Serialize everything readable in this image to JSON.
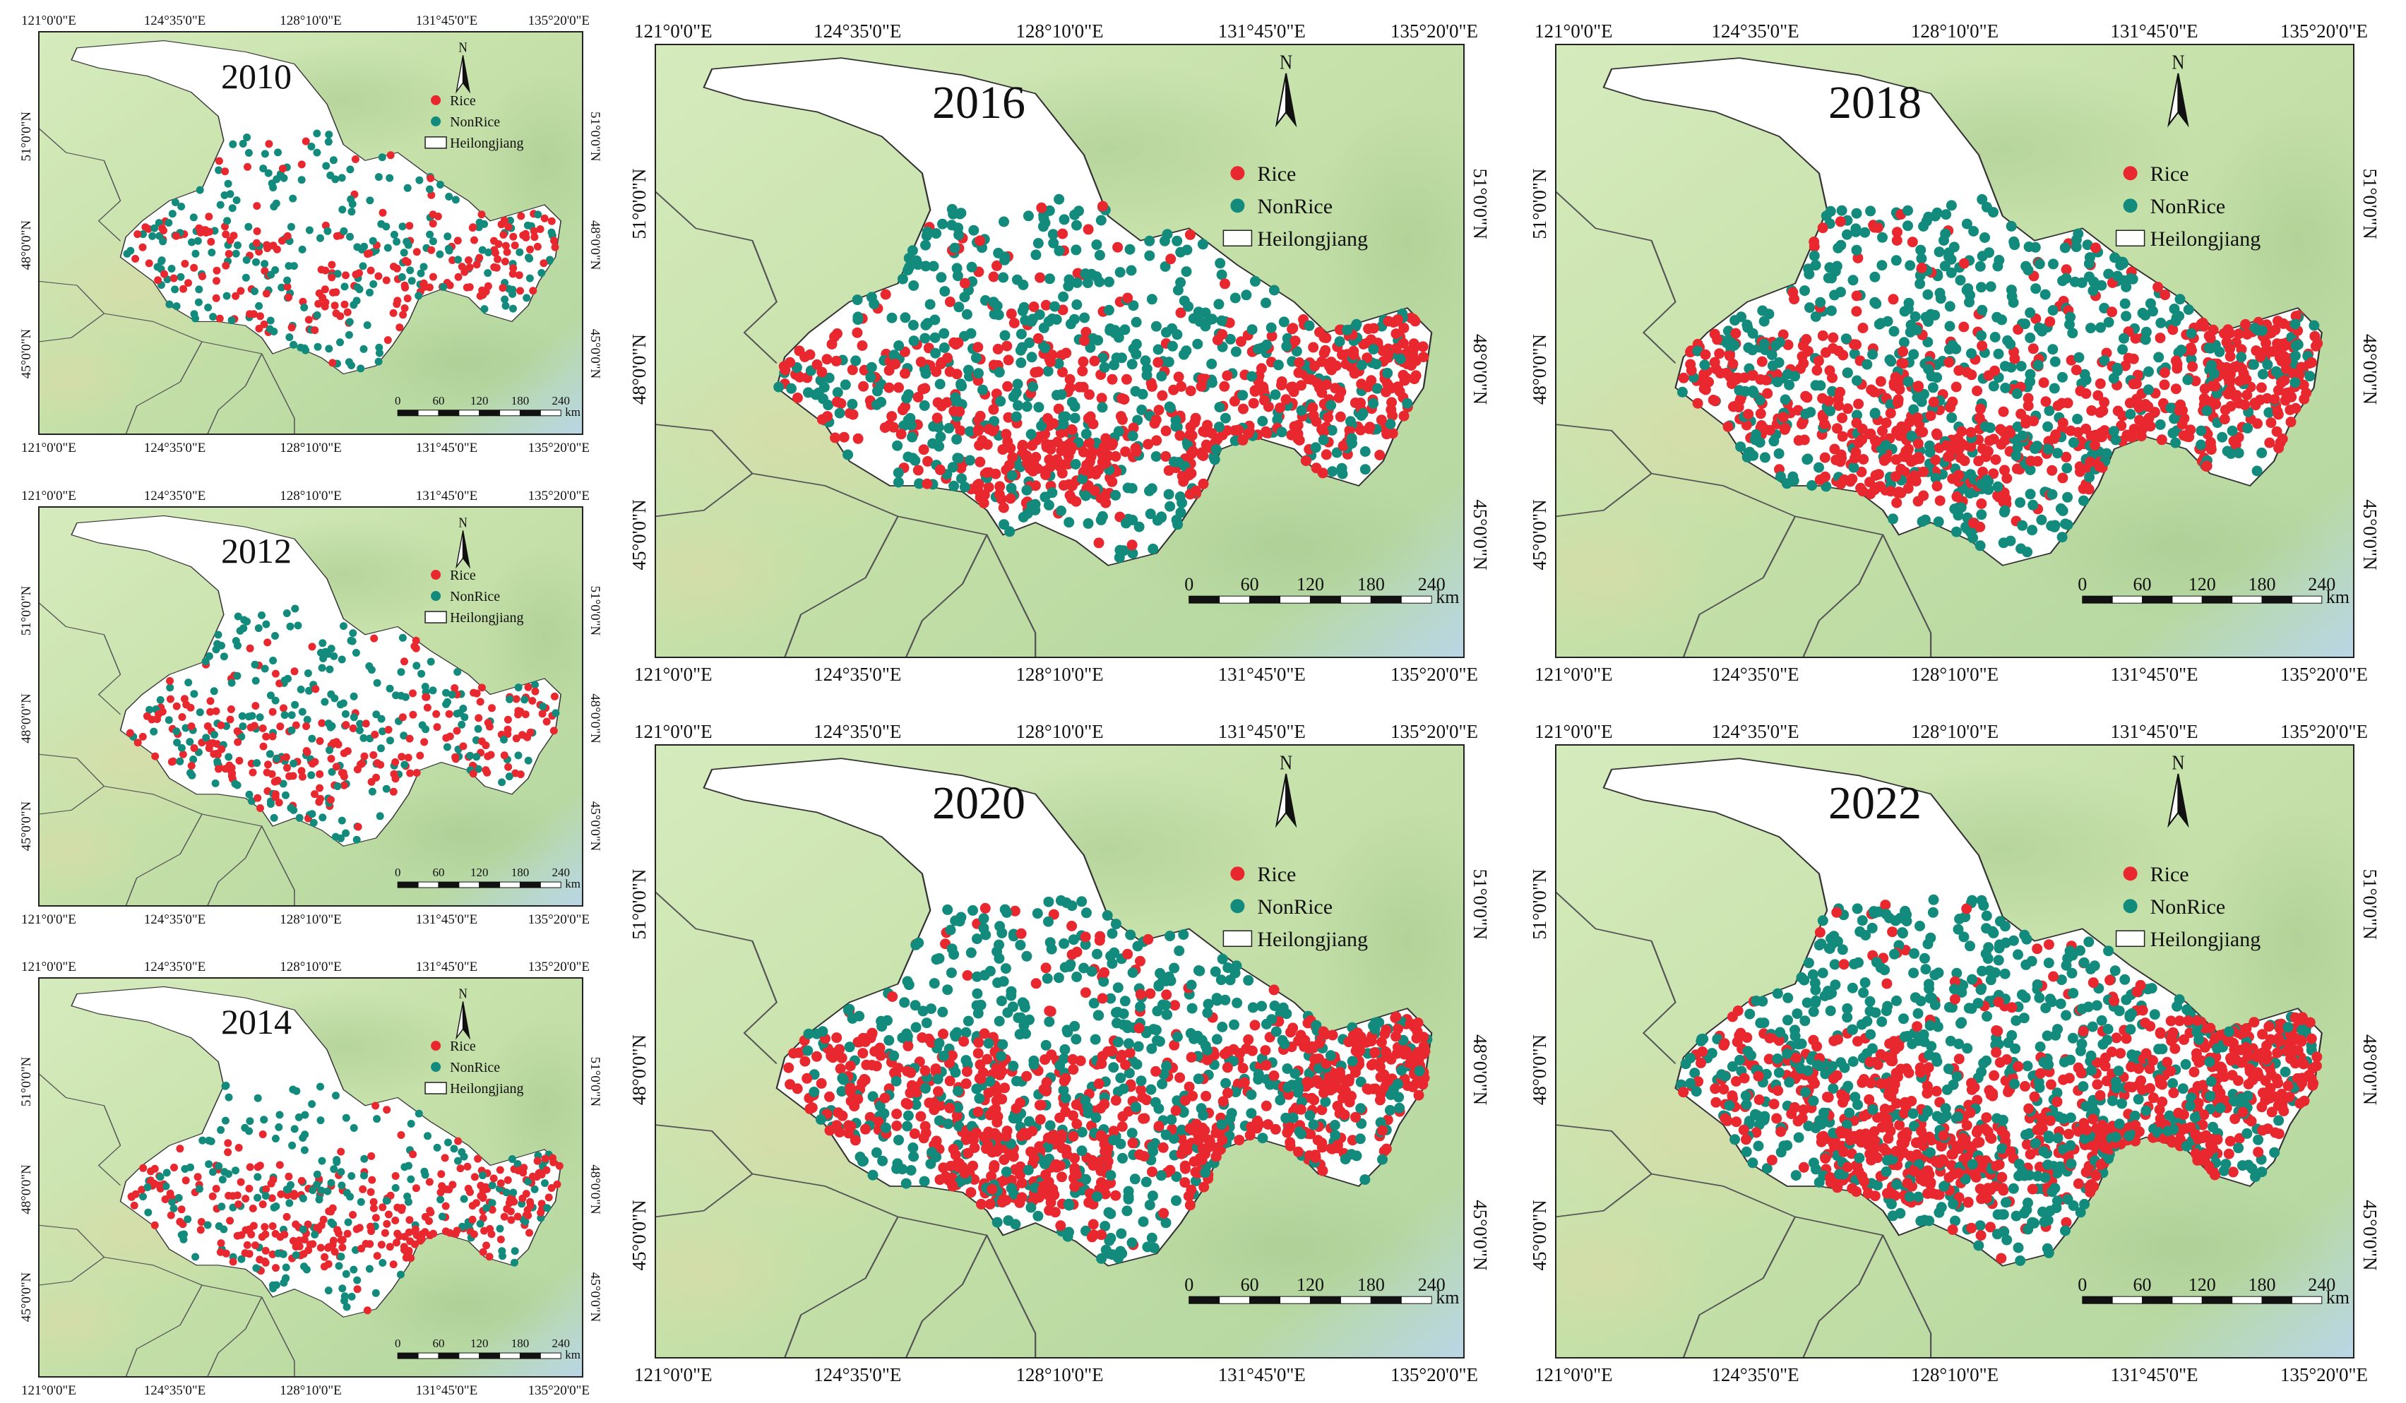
{
  "figure": {
    "lon_ticks": [
      "121°0'0\"E",
      "124°35'0\"E",
      "128°10'0\"E",
      "131°45'0\"E",
      "135°20'0\"E"
    ],
    "lat_ticks": [
      "45°0'0\"N",
      "48°0'0\"N",
      "51°0'0\"N"
    ],
    "legend": {
      "rice": "Rice",
      "nonrice": "NonRice",
      "region": "Heilongjiang"
    },
    "north_label": "N",
    "scale_labels": [
      "0",
      "60",
      "120",
      "180",
      "240"
    ],
    "scale_unit": "km",
    "colors": {
      "rice": "#e8282e",
      "nonrice": "#128a7c",
      "background": "#c9e3b0",
      "province": "#ffffff"
    }
  },
  "panels": [
    {
      "year": "2010",
      "rice": 380,
      "nonrice": 420
    },
    {
      "year": "2012",
      "rice": 420,
      "nonrice": 400
    },
    {
      "year": "2014",
      "rice": 560,
      "nonrice": 360
    },
    {
      "year": "2016",
      "rice": 620,
      "nonrice": 520
    },
    {
      "year": "2018",
      "rice": 700,
      "nonrice": 560
    },
    {
      "year": "2020",
      "rice": 760,
      "nonrice": 600
    },
    {
      "year": "2022",
      "rice": 860,
      "nonrice": 720
    }
  ]
}
